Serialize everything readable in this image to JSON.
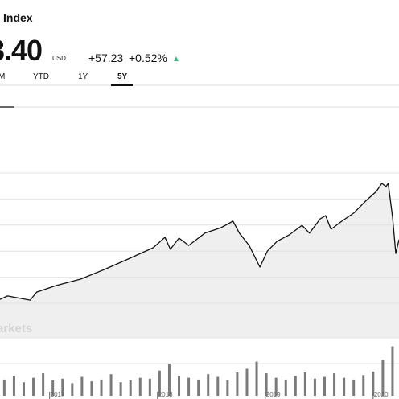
{
  "header": {
    "name": "Index",
    "price": "3.40",
    "currency": "USD",
    "change": "+57.23",
    "change_pct": "+0.52%",
    "arrow": "▲"
  },
  "tabs": [
    "M",
    "YTD",
    "1Y",
    "5Y"
  ],
  "watermark": "arkets",
  "chart_data": [
    {
      "type": "line",
      "color": "#111111",
      "area_color": "#efefef",
      "grid": true,
      "x": [
        2016.54,
        2016.61,
        2016.69,
        2016.82,
        2016.88,
        2017.06,
        2017.29,
        2017.51,
        2017.73,
        2017.96,
        2018.07,
        2018.12,
        2018.2,
        2018.29,
        2018.44,
        2018.59,
        2018.7,
        2018.76,
        2018.85,
        2018.95,
        2019.02,
        2019.11,
        2019.22,
        2019.34,
        2019.41,
        2019.51,
        2019.56,
        2019.61,
        2019.71,
        2019.82,
        2019.93,
        2020.03,
        2020.08,
        2020.12,
        2020.14,
        2020.18,
        2020.21,
        2020.24
      ],
      "values": [
        11.5,
        12.8,
        12.2,
        11.2,
        14.3,
        16.8,
        19.3,
        23.0,
        27.0,
        31.3,
        35.3,
        30.7,
        35.0,
        32.2,
        36.9,
        39.0,
        41.5,
        36.9,
        32.2,
        23.9,
        30.1,
        33.8,
        36.2,
        39.9,
        36.9,
        42.4,
        43.6,
        38.4,
        41.5,
        44.6,
        49.2,
        52.9,
        56.0,
        54.8,
        56.0,
        43.0,
        29.1,
        34.4
      ],
      "xlim": [
        2016.54,
        2020.24
      ],
      "ylim": [
        0,
        70
      ],
      "yticks": [
        10,
        20,
        30,
        40,
        50,
        60
      ]
    },
    {
      "type": "bar",
      "color": "#7a7a7a",
      "x": [
        2016.58,
        2016.67,
        2016.76,
        2016.85,
        2016.94,
        2017.03,
        2017.12,
        2017.21,
        2017.3,
        2017.39,
        2017.48,
        2017.57,
        2017.66,
        2017.75,
        2017.84,
        2017.93,
        2018.02,
        2018.11,
        2018.2,
        2018.29,
        2018.38,
        2018.47,
        2018.56,
        2018.65,
        2018.74,
        2018.83,
        2018.92,
        2019.01,
        2019.1,
        2019.19,
        2019.28,
        2019.37,
        2019.46,
        2019.55,
        2019.64,
        2019.73,
        2019.82,
        2019.91,
        2020.0,
        2020.09,
        2020.18
      ],
      "values": [
        18,
        22,
        15,
        20,
        25,
        17,
        19,
        14,
        21,
        16,
        18,
        24,
        15,
        17,
        20,
        19,
        28,
        35,
        22,
        20,
        18,
        24,
        21,
        17,
        26,
        30,
        38,
        25,
        20,
        18,
        22,
        26,
        19,
        21,
        25,
        20,
        18,
        23,
        27,
        40,
        55
      ],
      "xlim": [
        2016.54,
        2020.24
      ],
      "ylim": [
        0,
        60
      ],
      "xticks": [
        2017,
        2018,
        2019,
        2020
      ]
    }
  ]
}
